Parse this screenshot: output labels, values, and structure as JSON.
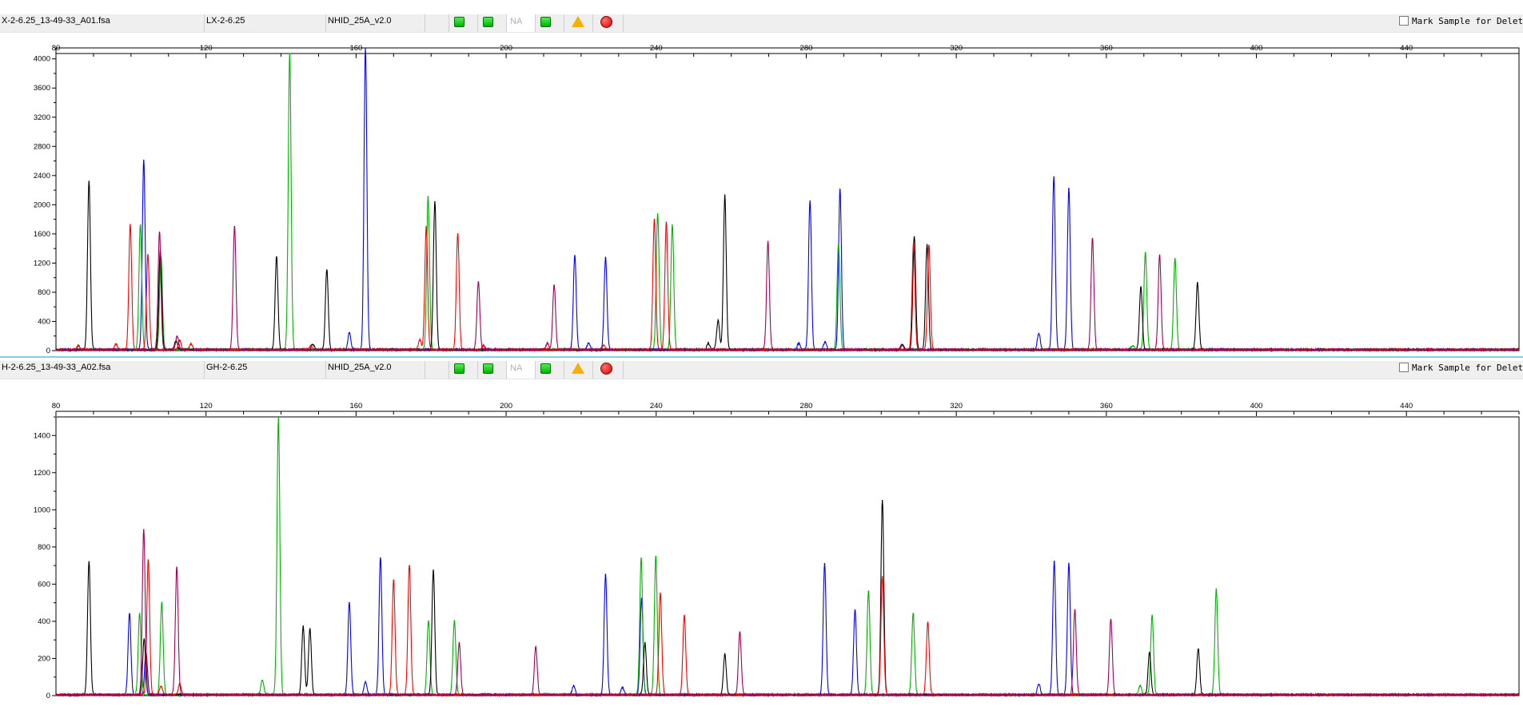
{
  "colors": {
    "blue": "#0000ff",
    "green": "#00b400",
    "black": "#000000",
    "red": "#ff0000",
    "purple": "#a0005a"
  },
  "panels": [
    {
      "file_name": "X-2-6.25_13-49-33_A01.fsa",
      "sample_name": "LX-2-6.25",
      "panel_name": "NHID_25A_v2.0",
      "na_label": "NA",
      "mark_label": "Mark Sample for Deletion",
      "icons": [
        "green-square-icon",
        "green-square-icon",
        "na-field",
        "green-square-icon",
        "warning-triangle-icon",
        "stop-circle-icon"
      ]
    },
    {
      "file_name": "H-2-6.25_13-49-33_A02.fsa",
      "sample_name": "GH-2-6.25",
      "panel_name": "NHID_25A_v2.0",
      "na_label": "NA",
      "mark_label": "Mark Sample for Deletion",
      "icons": [
        "green-square-icon",
        "green-square-icon",
        "na-field",
        "green-square-icon",
        "warning-triangle-icon",
        "stop-circle-icon"
      ]
    }
  ],
  "chart_data": [
    {
      "type": "line",
      "title": "",
      "xlabel": "",
      "ylabel": "",
      "xlim": [
        80,
        470
      ],
      "ylim": [
        0,
        4150
      ],
      "x_ticks": [
        80,
        120,
        160,
        200,
        240,
        280,
        320,
        360,
        400,
        440
      ],
      "y_ticks": [
        0,
        400,
        800,
        1200,
        1600,
        2000,
        2400,
        2800,
        3200,
        3600,
        4000
      ],
      "grid": false,
      "series": [
        {
          "color": "blue",
          "peaks": [
            [
              103.4,
              2600
            ],
            [
              158.2,
              240
            ],
            [
              162.5,
              4150
            ],
            [
              218.3,
              1300
            ],
            [
              222,
              100
            ],
            [
              226.5,
              1270
            ],
            [
              278,
              90
            ],
            [
              281,
              2050
            ],
            [
              285,
              110
            ],
            [
              289,
              2200
            ],
            [
              342,
              230
            ],
            [
              346,
              2380
            ],
            [
              350,
              2220
            ]
          ]
        },
        {
          "color": "green",
          "peaks": [
            [
              102.5,
              1720
            ],
            [
              108,
              1280
            ],
            [
              142.3,
              4070
            ],
            [
              179.2,
              2100
            ],
            [
              240.4,
              1870
            ],
            [
              244.3,
              1720
            ],
            [
              288.6,
              1450
            ],
            [
              370.4,
              1340
            ],
            [
              378.3,
              1260
            ],
            [
              367,
              60
            ]
          ]
        },
        {
          "color": "black",
          "peaks": [
            [
              88.8,
              2320
            ],
            [
              107.8,
              1360
            ],
            [
              112,
              120
            ],
            [
              138.8,
              1280
            ],
            [
              148.5,
              80
            ],
            [
              152.2,
              1100
            ],
            [
              181,
              2040
            ],
            [
              253.9,
              90
            ],
            [
              258.3,
              2120
            ],
            [
              256.5,
              400
            ],
            [
              305.6,
              70
            ],
            [
              308.8,
              1560
            ],
            [
              312.2,
              1440
            ],
            [
              369.2,
              860
            ],
            [
              384.3,
              920
            ]
          ]
        },
        {
          "color": "red",
          "peaks": [
            [
              86,
              60
            ],
            [
              96,
              80
            ],
            [
              99.8,
              1720
            ],
            [
              104.5,
              1300
            ],
            [
              113,
              130
            ],
            [
              116,
              80
            ],
            [
              148,
              60
            ],
            [
              177,
              140
            ],
            [
              178.7,
              1690
            ],
            [
              187.1,
              1600
            ],
            [
              194,
              60
            ],
            [
              226,
              70
            ],
            [
              239.5,
              1790
            ],
            [
              242.7,
              1760
            ],
            [
              308.6,
              1470
            ],
            [
              312.7,
              1430
            ]
          ]
        },
        {
          "color": "purple",
          "peaks": [
            [
              107.6,
              1620
            ],
            [
              112.3,
              190
            ],
            [
              127.6,
              1700
            ],
            [
              192.6,
              940
            ],
            [
              212.8,
              890
            ],
            [
              211,
              90
            ],
            [
              269.8,
              1490
            ],
            [
              305.5,
              70
            ],
            [
              356.3,
              1530
            ],
            [
              374.2,
              1300
            ]
          ]
        }
      ]
    },
    {
      "type": "line",
      "title": "",
      "xlabel": "",
      "ylabel": "",
      "xlim": [
        80,
        470
      ],
      "ylim": [
        0,
        1500
      ],
      "x_ticks": [
        80,
        120,
        160,
        200,
        240,
        280,
        320,
        360,
        400,
        440
      ],
      "y_ticks": [
        0,
        200,
        400,
        600,
        800,
        1000,
        1200,
        1400
      ],
      "grid": false,
      "series": [
        {
          "color": "blue",
          "peaks": [
            [
              99.6,
              440
            ],
            [
              104,
              230
            ],
            [
              158.2,
              500
            ],
            [
              162.5,
              70
            ],
            [
              166.5,
              740
            ],
            [
              218,
              50
            ],
            [
              226.5,
              650
            ],
            [
              231,
              40
            ],
            [
              236.1,
              520
            ],
            [
              284.9,
              710
            ],
            [
              293,
              460
            ],
            [
              342,
              60
            ],
            [
              346.1,
              720
            ],
            [
              350,
              710
            ]
          ]
        },
        {
          "color": "green",
          "peaks": [
            [
              102.3,
              440
            ],
            [
              108.2,
              500
            ],
            [
              135,
              80
            ],
            [
              139.3,
              1490
            ],
            [
              179.3,
              400
            ],
            [
              186.2,
              400
            ],
            [
              236,
              740
            ],
            [
              239.9,
              750
            ],
            [
              296.6,
              560
            ],
            [
              308.5,
              440
            ],
            [
              372.2,
              430
            ],
            [
              389.3,
              570
            ],
            [
              369,
              50
            ]
          ]
        },
        {
          "color": "black",
          "peaks": [
            [
              88.8,
              720
            ],
            [
              103.5,
              300
            ],
            [
              145.9,
              370
            ],
            [
              147.7,
              360
            ],
            [
              180.6,
              670
            ],
            [
              237,
              280
            ],
            [
              258.3,
              220
            ],
            [
              300.3,
              1050
            ],
            [
              371.5,
              230
            ],
            [
              384.5,
              250
            ]
          ]
        },
        {
          "color": "red",
          "peaks": [
            [
              104.6,
              730
            ],
            [
              170,
              620
            ],
            [
              174.2,
              700
            ],
            [
              241.1,
              550
            ],
            [
              247.5,
              430
            ],
            [
              300.3,
              640
            ],
            [
              312.4,
              390
            ],
            [
              108,
              50
            ],
            [
              113,
              60
            ]
          ]
        },
        {
          "color": "purple",
          "peaks": [
            [
              103.4,
              890
            ],
            [
              112.2,
              690
            ],
            [
              187.5,
              280
            ],
            [
              207.9,
              260
            ],
            [
              262.3,
              340
            ],
            [
              351.6,
              460
            ],
            [
              361.2,
              410
            ]
          ]
        }
      ]
    }
  ]
}
